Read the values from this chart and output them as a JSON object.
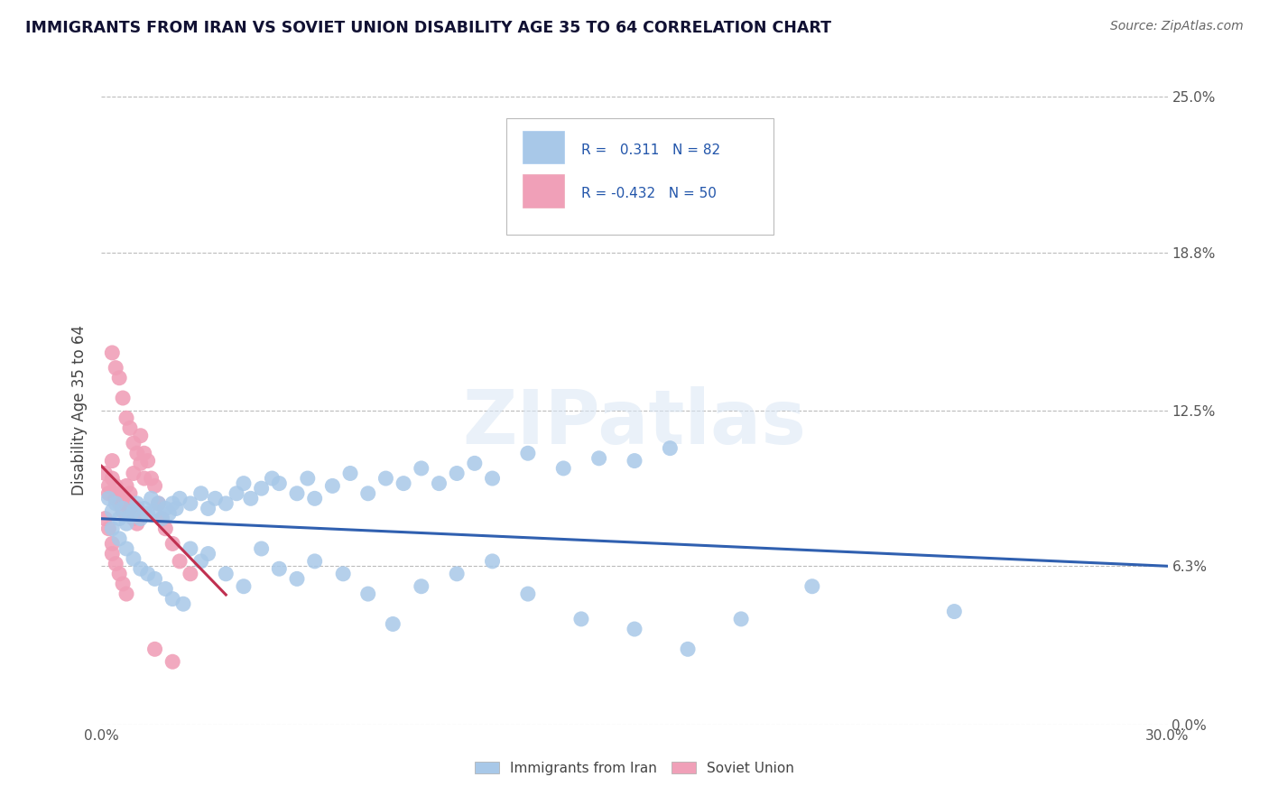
{
  "title": "IMMIGRANTS FROM IRAN VS SOVIET UNION DISABILITY AGE 35 TO 64 CORRELATION CHART",
  "source": "Source: ZipAtlas.com",
  "ylabel": "Disability Age 35 to 64",
  "xlim": [
    0.0,
    0.3
  ],
  "ylim": [
    0.0,
    0.25
  ],
  "xtick_positions": [
    0.0,
    0.1,
    0.2,
    0.3
  ],
  "xtick_labels": [
    "0.0%",
    "",
    "",
    "30.0%"
  ],
  "ytick_values": [
    0.0,
    0.063,
    0.125,
    0.188,
    0.25
  ],
  "ytick_labels": [
    "0.0%",
    "6.3%",
    "12.5%",
    "18.8%",
    "25.0%"
  ],
  "legend_label1": "Immigrants from Iran",
  "legend_label2": "Soviet Union",
  "r1": 0.311,
  "n1": 82,
  "r2": -0.432,
  "n2": 50,
  "color_iran": "#a8c8e8",
  "color_soviet": "#f0a0b8",
  "line_color_iran": "#3060b0",
  "line_color_soviet": "#c03050",
  "iran_x": [
    0.002,
    0.003,
    0.004,
    0.005,
    0.006,
    0.007,
    0.008,
    0.009,
    0.01,
    0.011,
    0.012,
    0.013,
    0.014,
    0.015,
    0.016,
    0.017,
    0.018,
    0.019,
    0.02,
    0.021,
    0.022,
    0.025,
    0.028,
    0.03,
    0.032,
    0.035,
    0.038,
    0.04,
    0.042,
    0.045,
    0.048,
    0.05,
    0.055,
    0.058,
    0.06,
    0.065,
    0.07,
    0.075,
    0.08,
    0.085,
    0.09,
    0.095,
    0.1,
    0.105,
    0.11,
    0.12,
    0.13,
    0.14,
    0.15,
    0.16,
    0.003,
    0.005,
    0.007,
    0.009,
    0.011,
    0.013,
    0.015,
    0.018,
    0.02,
    0.023,
    0.025,
    0.028,
    0.03,
    0.035,
    0.04,
    0.045,
    0.05,
    0.055,
    0.06,
    0.068,
    0.075,
    0.082,
    0.09,
    0.1,
    0.11,
    0.12,
    0.135,
    0.15,
    0.165,
    0.18,
    0.2,
    0.24
  ],
  "iran_y": [
    0.09,
    0.085,
    0.088,
    0.082,
    0.086,
    0.08,
    0.083,
    0.085,
    0.088,
    0.082,
    0.086,
    0.084,
    0.09,
    0.085,
    0.088,
    0.082,
    0.086,
    0.084,
    0.088,
    0.086,
    0.09,
    0.088,
    0.092,
    0.086,
    0.09,
    0.088,
    0.092,
    0.096,
    0.09,
    0.094,
    0.098,
    0.096,
    0.092,
    0.098,
    0.09,
    0.095,
    0.1,
    0.092,
    0.098,
    0.096,
    0.102,
    0.096,
    0.1,
    0.104,
    0.098,
    0.108,
    0.102,
    0.106,
    0.105,
    0.11,
    0.078,
    0.074,
    0.07,
    0.066,
    0.062,
    0.06,
    0.058,
    0.054,
    0.05,
    0.048,
    0.07,
    0.065,
    0.068,
    0.06,
    0.055,
    0.07,
    0.062,
    0.058,
    0.065,
    0.06,
    0.052,
    0.04,
    0.055,
    0.06,
    0.065,
    0.052,
    0.042,
    0.038,
    0.03,
    0.042,
    0.055,
    0.045
  ],
  "soviet_x": [
    0.001,
    0.002,
    0.002,
    0.003,
    0.003,
    0.004,
    0.004,
    0.005,
    0.005,
    0.006,
    0.006,
    0.007,
    0.007,
    0.008,
    0.008,
    0.009,
    0.009,
    0.01,
    0.01,
    0.011,
    0.012,
    0.013,
    0.014,
    0.015,
    0.016,
    0.017,
    0.018,
    0.02,
    0.022,
    0.025,
    0.003,
    0.004,
    0.005,
    0.006,
    0.007,
    0.008,
    0.009,
    0.01,
    0.011,
    0.012,
    0.001,
    0.002,
    0.003,
    0.003,
    0.004,
    0.005,
    0.006,
    0.007,
    0.015,
    0.02
  ],
  "soviet_y": [
    0.1,
    0.095,
    0.092,
    0.105,
    0.098,
    0.095,
    0.09,
    0.092,
    0.088,
    0.09,
    0.085,
    0.095,
    0.088,
    0.092,
    0.085,
    0.1,
    0.082,
    0.086,
    0.08,
    0.115,
    0.108,
    0.105,
    0.098,
    0.095,
    0.088,
    0.082,
    0.078,
    0.072,
    0.065,
    0.06,
    0.148,
    0.142,
    0.138,
    0.13,
    0.122,
    0.118,
    0.112,
    0.108,
    0.104,
    0.098,
    0.082,
    0.078,
    0.072,
    0.068,
    0.064,
    0.06,
    0.056,
    0.052,
    0.03,
    0.025
  ]
}
